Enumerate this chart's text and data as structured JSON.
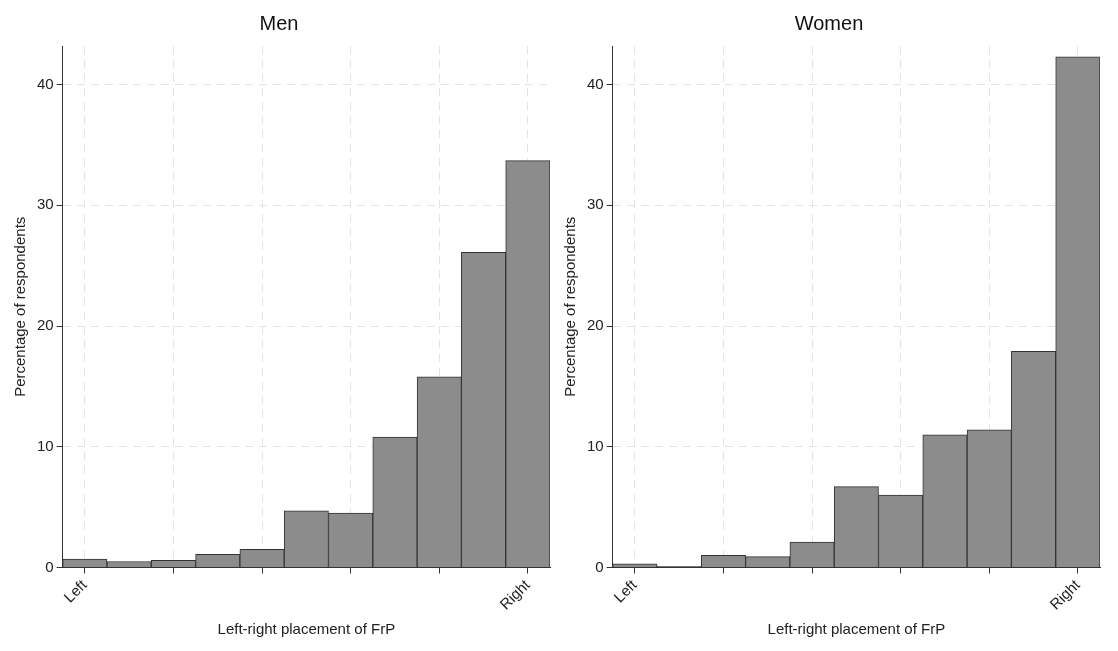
{
  "chart_data": [
    {
      "type": "bar",
      "title": "Men",
      "xlabel": "Left-right placement of FrP",
      "ylabel": "Percentage of respondents",
      "categories": [
        "Left",
        null,
        null,
        null,
        null,
        null,
        null,
        null,
        null,
        null,
        "Right"
      ],
      "values": [
        0.7,
        0.5,
        0.6,
        1.1,
        1.5,
        4.7,
        4.5,
        10.8,
        15.8,
        26.1,
        33.7
      ],
      "color": "#8c8c8c",
      "ylim": [
        0,
        43.2
      ],
      "yticks": [
        0,
        10,
        20,
        30,
        40
      ],
      "grid": true
    },
    {
      "type": "bar",
      "title": "Women",
      "xlabel": "Left-right placement of FrP",
      "ylabel": "Percentage of respondents",
      "categories": [
        "Left",
        null,
        null,
        null,
        null,
        null,
        null,
        null,
        null,
        null,
        "Right"
      ],
      "values": [
        0.3,
        0.1,
        1.0,
        0.9,
        2.1,
        6.7,
        6.0,
        11.0,
        11.4,
        17.9,
        42.3
      ],
      "color": "#8c8c8c",
      "ylim": [
        0,
        43.2
      ],
      "yticks": [
        0,
        10,
        20,
        30,
        40
      ],
      "grid": true
    }
  ]
}
